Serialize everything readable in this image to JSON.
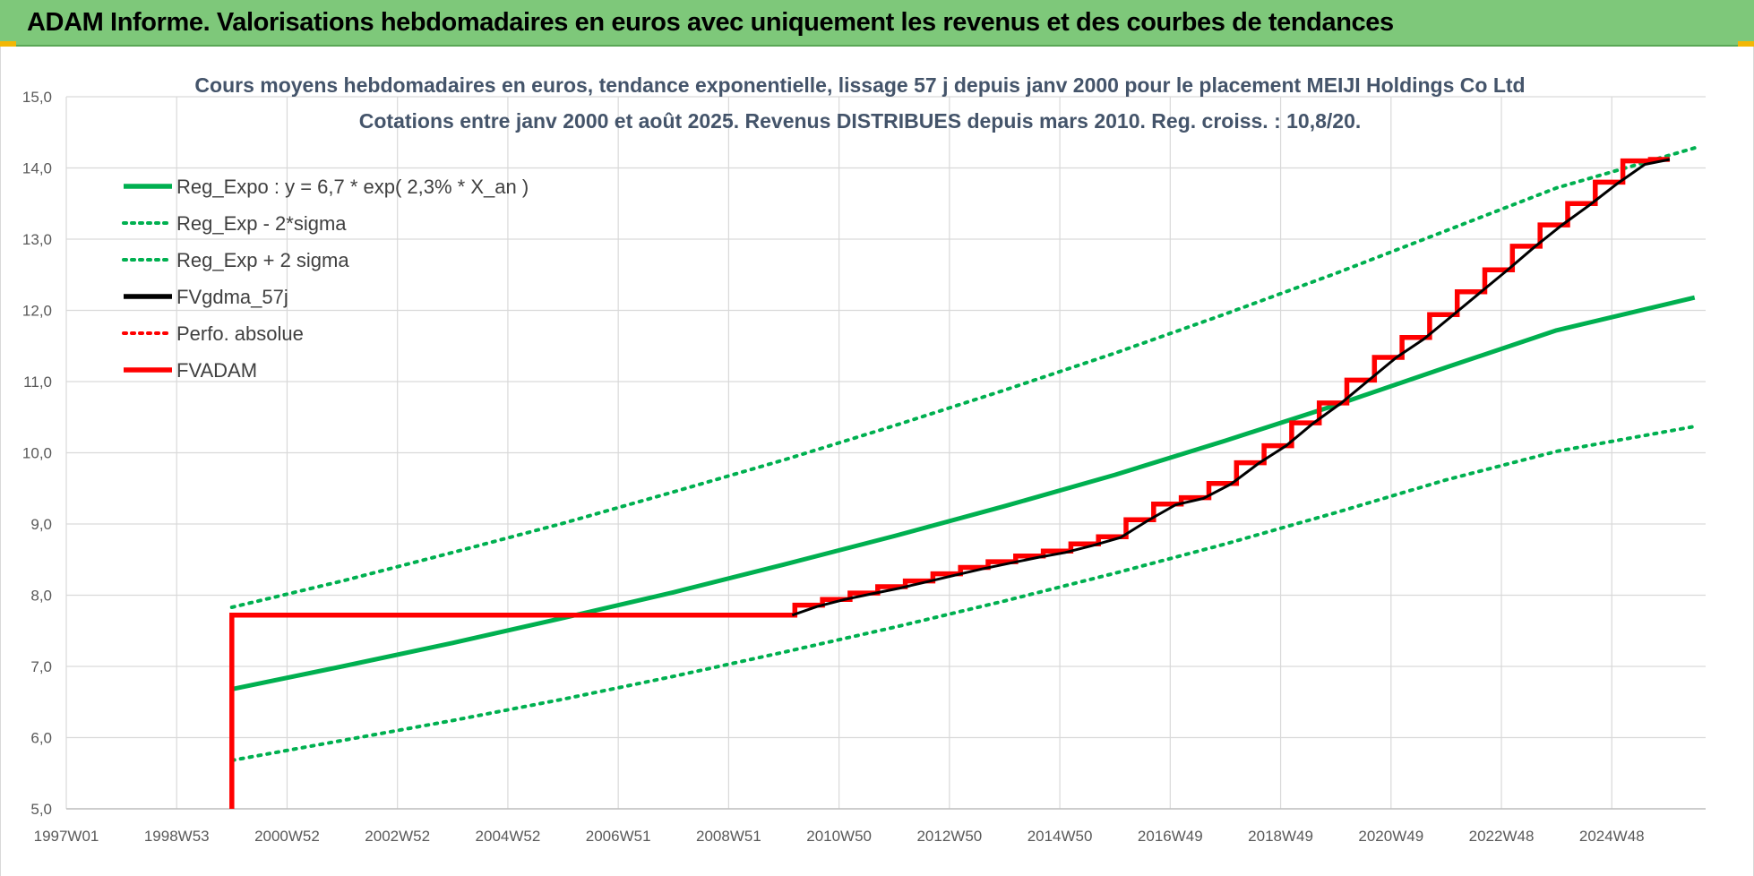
{
  "header": {
    "title": "ADAM Informe. Valorisations hebdomadaires en euros avec uniquement les revenus et des courbes de tendances"
  },
  "colors": {
    "banner": "#7ec87a",
    "green": "#00b050",
    "red": "#ff0000",
    "black": "#000000",
    "grid": "#d9d9d9"
  },
  "chart_data": {
    "type": "line",
    "title_lines": [
      "Cours moyens hebdomadaires en euros, tendance exponentielle, lissage 57 j depuis janv 2000 pour le placement MEIJI Holdings Co Ltd",
      "Cotations entre janv 2000 et août 2025.  Revenus DISTRIBUES depuis mars 2010. Reg. croiss. : 10,8/20."
    ],
    "x_tick_labels": [
      "1997W01",
      "1998W53",
      "2000W52",
      "2002W52",
      "2004W52",
      "2006W51",
      "2008W51",
      "2010W50",
      "2012W50",
      "2014W50",
      "2016W49",
      "2018W49",
      "2020W49",
      "2022W48",
      "2024W48"
    ],
    "x_ticks": [
      1997.0,
      1999.0,
      2001.0,
      2003.0,
      2005.0,
      2007.0,
      2009.0,
      2011.0,
      2013.0,
      2015.0,
      2017.0,
      2019.0,
      2021.0,
      2023.0,
      2025.0
    ],
    "xlim": [
      1997.0,
      2026.7
    ],
    "y_tick_labels": [
      "5,0",
      "6,0",
      "7,0",
      "8,0",
      "9,0",
      "10,0",
      "11,0",
      "12,0",
      "13,0",
      "14,0",
      "15,0"
    ],
    "ylim": [
      5.0,
      15.0
    ],
    "grid": true,
    "legend_position": "top-left",
    "legend": [
      {
        "label": "Reg_Expo : y = 6,7 * exp( 2,3% *  X_an )",
        "color": "#00b050",
        "style": "solid"
      },
      {
        "label": "Reg_Exp - 2*sigma",
        "color": "#00b050",
        "style": "dotted"
      },
      {
        "label": "Reg_Exp + 2 sigma",
        "color": "#00b050",
        "style": "dotted"
      },
      {
        "label": "FVgdma_57j",
        "color": "#000000",
        "style": "solid"
      },
      {
        "label": "Perfo. absolue",
        "color": "#ff0000",
        "style": "dotted"
      },
      {
        "label": "FVADAM",
        "color": "#ff0000",
        "style": "solid"
      }
    ],
    "series": [
      {
        "name": "Reg_Expo : y = 6,7 * exp( 2,3% *  X_an )",
        "x": [
          2000.0,
          2002.0,
          2004.0,
          2006.0,
          2008.0,
          2010.0,
          2012.0,
          2014.0,
          2016.0,
          2018.0,
          2020.0,
          2022.0,
          2024.0,
          2026.5
        ],
        "values": [
          6.68,
          7.0,
          7.33,
          7.68,
          8.04,
          8.43,
          8.83,
          9.25,
          9.69,
          10.17,
          10.67,
          11.2,
          11.72,
          12.18
        ]
      },
      {
        "name": "Reg_Exp - 2*sigma",
        "x": [
          2000.0,
          2002.0,
          2004.0,
          2006.0,
          2008.0,
          2010.0,
          2012.0,
          2014.0,
          2016.0,
          2018.0,
          2020.0,
          2022.0,
          2024.0,
          2026.5
        ],
        "values": [
          5.68,
          5.96,
          6.24,
          6.54,
          6.86,
          7.2,
          7.55,
          7.92,
          8.31,
          8.72,
          9.16,
          9.62,
          10.02,
          10.37
        ]
      },
      {
        "name": "Reg_Exp + 2 sigma",
        "x": [
          2000.0,
          2002.0,
          2004.0,
          2006.0,
          2008.0,
          2010.0,
          2012.0,
          2014.0,
          2016.0,
          2018.0,
          2020.0,
          2022.0,
          2024.0,
          2026.5
        ],
        "values": [
          7.83,
          8.2,
          8.6,
          9.01,
          9.45,
          9.9,
          10.38,
          10.88,
          11.4,
          11.95,
          12.52,
          13.12,
          13.72,
          14.28
        ]
      },
      {
        "name": "FVgdma_57j",
        "x": [
          2010.15,
          2010.6,
          2011.1,
          2011.6,
          2012.1,
          2012.6,
          2013.1,
          2013.6,
          2014.1,
          2014.6,
          2015.1,
          2015.6,
          2016.1,
          2016.6,
          2017.1,
          2017.6,
          2018.1,
          2018.6,
          2019.1,
          2019.6,
          2020.1,
          2020.6,
          2021.1,
          2021.6,
          2022.1,
          2022.6,
          2023.1,
          2023.6,
          2024.1,
          2024.6,
          2025.1,
          2025.6,
          2026.05
        ],
        "values": [
          7.72,
          7.84,
          7.94,
          8.02,
          8.1,
          8.19,
          8.28,
          8.37,
          8.45,
          8.53,
          8.6,
          8.7,
          8.81,
          9.05,
          9.27,
          9.36,
          9.56,
          9.85,
          10.1,
          10.42,
          10.7,
          11.02,
          11.34,
          11.6,
          11.92,
          12.24,
          12.56,
          12.89,
          13.2,
          13.48,
          13.78,
          14.05,
          14.12
        ]
      },
      {
        "name": "FVADAM",
        "x": [
          2000.0,
          2000.0,
          2010.2,
          2010.2,
          2010.7,
          2010.7,
          2011.2,
          2011.2,
          2011.7,
          2011.7,
          2012.2,
          2012.2,
          2012.7,
          2012.7,
          2013.2,
          2013.2,
          2013.7,
          2013.7,
          2014.2,
          2014.2,
          2014.7,
          2014.7,
          2015.2,
          2015.2,
          2015.7,
          2015.7,
          2016.2,
          2016.2,
          2016.7,
          2016.7,
          2017.2,
          2017.2,
          2017.7,
          2017.7,
          2018.2,
          2018.2,
          2018.7,
          2018.7,
          2019.2,
          2019.2,
          2019.7,
          2019.7,
          2020.2,
          2020.2,
          2020.7,
          2020.7,
          2021.2,
          2021.2,
          2021.7,
          2021.7,
          2022.2,
          2022.2,
          2022.7,
          2022.7,
          2023.2,
          2023.2,
          2023.7,
          2023.7,
          2024.2,
          2024.2,
          2024.7,
          2024.7,
          2025.2,
          2025.2,
          2025.7,
          2025.7,
          2026.05
        ],
        "values": [
          5.0,
          7.72,
          7.72,
          7.86,
          7.86,
          7.94,
          7.94,
          8.03,
          8.03,
          8.12,
          8.12,
          8.2,
          8.2,
          8.3,
          8.3,
          8.39,
          8.39,
          8.47,
          8.47,
          8.55,
          8.55,
          8.62,
          8.62,
          8.72,
          8.72,
          8.82,
          8.82,
          9.06,
          9.06,
          9.28,
          9.28,
          9.37,
          9.37,
          9.57,
          9.57,
          9.86,
          9.86,
          10.1,
          10.1,
          10.42,
          10.42,
          10.7,
          10.7,
          11.02,
          11.02,
          11.34,
          11.34,
          11.62,
          11.62,
          11.94,
          11.94,
          12.26,
          12.26,
          12.57,
          12.57,
          12.9,
          12.9,
          13.2,
          13.2,
          13.5,
          13.5,
          13.8,
          13.8,
          14.1,
          14.1,
          14.12,
          14.12
        ]
      }
    ]
  }
}
